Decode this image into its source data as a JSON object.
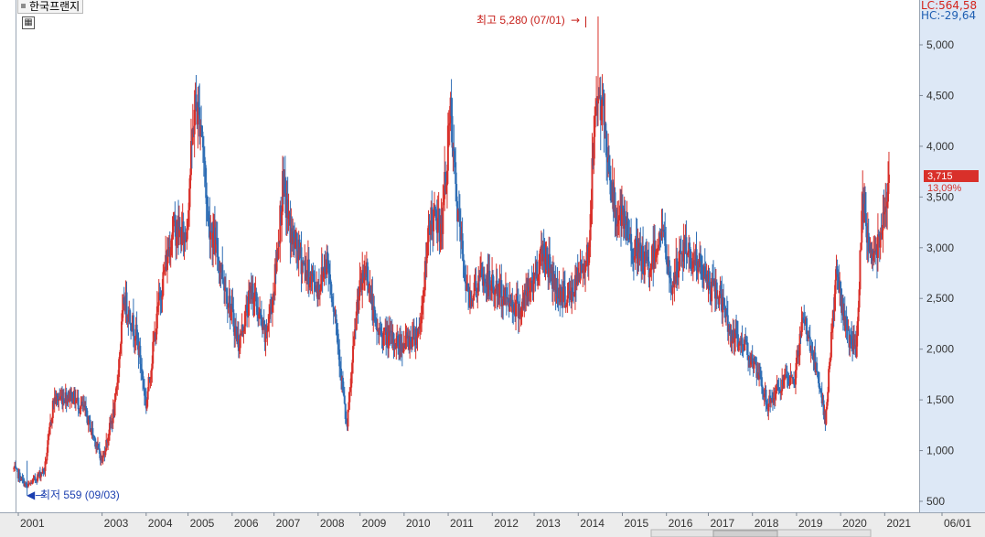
{
  "window": {
    "title": "한국프랜지"
  },
  "legend": {
    "lc": "LC:564,58",
    "hc": "HC:-29,64",
    "lc_color": "#d4231c",
    "hc_color": "#1f5fb2"
  },
  "indicators": {
    "grid_icon": "table-grid-icon"
  },
  "colors": {
    "up": "#d9302a",
    "down": "#2f6eb5",
    "axis_panel": "#dde8f6",
    "current_price_bg": "#d9302a"
  },
  "chart_data": {
    "type": "candlestick",
    "ylim": [
      440,
      5320
    ],
    "y_ticks": [
      500,
      1000,
      1500,
      2000,
      2500,
      3000,
      3500,
      4000,
      4500,
      5000
    ],
    "y_tick_labels": [
      "500",
      "1,000",
      "1,500",
      "2,000",
      "2,500",
      "3,000",
      "3,500",
      "4,000",
      "4,500",
      "5,000"
    ],
    "x_ticks": [
      {
        "label": "2001",
        "t": 2001.0
      },
      {
        "label": "2003",
        "t": 2002.9
      },
      {
        "label": "2004",
        "t": 2003.9
      },
      {
        "label": "2005",
        "t": 2004.85
      },
      {
        "label": "2006",
        "t": 2005.85
      },
      {
        "label": "2007",
        "t": 2006.8
      },
      {
        "label": "2008",
        "t": 2007.8
      },
      {
        "label": "2009",
        "t": 2008.75
      },
      {
        "label": "2010",
        "t": 2009.75
      },
      {
        "label": "2011",
        "t": 2010.75
      },
      {
        "label": "2012",
        "t": 2011.75
      },
      {
        "label": "2013",
        "t": 2012.7
      },
      {
        "label": "2014",
        "t": 2013.7
      },
      {
        "label": "2015",
        "t": 2014.7
      },
      {
        "label": "2016",
        "t": 2015.7
      },
      {
        "label": "2017",
        "t": 2016.65
      },
      {
        "label": "2018",
        "t": 2017.65
      },
      {
        "label": "2019",
        "t": 2018.65
      },
      {
        "label": "2020",
        "t": 2019.65
      },
      {
        "label": "2021",
        "t": 2020.65
      },
      {
        "label": "06/01",
        "t": 2021.95
      }
    ],
    "path": [
      [
        2000.9,
        820
      ],
      [
        2001.2,
        640
      ],
      [
        2001.6,
        820
      ],
      [
        2001.8,
        1500
      ],
      [
        2002.2,
        1550
      ],
      [
        2002.5,
        1400
      ],
      [
        2002.9,
        900
      ],
      [
        2003.2,
        1450
      ],
      [
        2003.4,
        2500
      ],
      [
        2003.7,
        2100
      ],
      [
        2003.9,
        1450
      ],
      [
        2004.2,
        2500
      ],
      [
        2004.5,
        3200
      ],
      [
        2004.8,
        3100
      ],
      [
        2005.0,
        4400
      ],
      [
        2005.15,
        4250
      ],
      [
        2005.3,
        3300
      ],
      [
        2005.6,
        2800
      ],
      [
        2006.0,
        2050
      ],
      [
        2006.3,
        2600
      ],
      [
        2006.6,
        2100
      ],
      [
        2006.8,
        2600
      ],
      [
        2007.0,
        3600
      ],
      [
        2007.2,
        3100
      ],
      [
        2007.5,
        2800
      ],
      [
        2007.8,
        2600
      ],
      [
        2008.0,
        2900
      ],
      [
        2008.2,
        2300
      ],
      [
        2008.45,
        1200
      ],
      [
        2008.7,
        2500
      ],
      [
        2008.9,
        2800
      ],
      [
        2009.1,
        2200
      ],
      [
        2009.4,
        2100
      ],
      [
        2009.7,
        2050
      ],
      [
        2009.9,
        2100
      ],
      [
        2010.1,
        2200
      ],
      [
        2010.35,
        3300
      ],
      [
        2010.6,
        3200
      ],
      [
        2010.8,
        4300
      ],
      [
        2010.95,
        3400
      ],
      [
        2011.2,
        2500
      ],
      [
        2011.5,
        2700
      ],
      [
        2011.8,
        2600
      ],
      [
        2012.1,
        2500
      ],
      [
        2012.4,
        2400
      ],
      [
        2012.7,
        2700
      ],
      [
        2012.9,
        3000
      ],
      [
        2013.2,
        2600
      ],
      [
        2013.5,
        2500
      ],
      [
        2013.7,
        2700
      ],
      [
        2013.95,
        3000
      ],
      [
        2014.1,
        4600
      ],
      [
        2014.3,
        4200
      ],
      [
        2014.5,
        3400
      ],
      [
        2014.7,
        3250
      ],
      [
        2015.0,
        2950
      ],
      [
        2015.3,
        2800
      ],
      [
        2015.6,
        3200
      ],
      [
        2015.8,
        2600
      ],
      [
        2016.1,
        3000
      ],
      [
        2016.4,
        2850
      ],
      [
        2016.7,
        2600
      ],
      [
        2016.9,
        2550
      ],
      [
        2017.2,
        2100
      ],
      [
        2017.5,
        2050
      ],
      [
        2017.8,
        1700
      ],
      [
        2018.0,
        1450
      ],
      [
        2018.3,
        1650
      ],
      [
        2018.6,
        1700
      ],
      [
        2018.8,
        2300
      ],
      [
        2019.0,
        2000
      ],
      [
        2019.3,
        1300
      ],
      [
        2019.55,
        2750
      ],
      [
        2019.8,
        2150
      ],
      [
        2020.0,
        1950
      ],
      [
        2020.15,
        3400
      ],
      [
        2020.35,
        2900
      ],
      [
        2020.5,
        3050
      ],
      [
        2020.75,
        3715
      ]
    ],
    "current": {
      "value": "3,715",
      "change": "13,09%"
    },
    "annotations": {
      "high": {
        "text": "최고 5,280 (07/01)",
        "value": 5280,
        "t": 2014.15
      },
      "low": {
        "text": "최저 559 (09/03)",
        "value": 559,
        "t": 2001.2
      }
    }
  }
}
